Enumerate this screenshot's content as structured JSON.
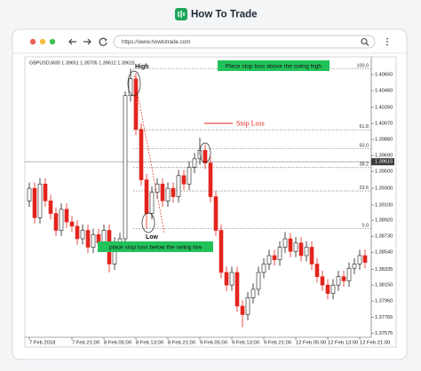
{
  "header": {
    "brand": "How To Trade"
  },
  "browser": {
    "url": "https://www.howtotrade.com"
  },
  "chart_data": {
    "type": "candlestick",
    "symbol_info": "GBPUSD,M30  1.39651 1.39705 1.39612 1.39615",
    "categories": [
      "7 Feb 2018",
      null,
      null,
      null,
      null,
      null,
      null,
      null,
      "7 Feb 21:00",
      null,
      null,
      null,
      null,
      null,
      "8 Feb 05:00",
      null,
      null,
      null,
      null,
      null,
      "8 Feb 13:00",
      null,
      null,
      null,
      null,
      null,
      "8 Feb 21:00",
      null,
      null,
      null,
      null,
      null,
      "9 Feb 05:00",
      null,
      null,
      null,
      null,
      null,
      "9 Feb 13:00",
      null,
      null,
      null,
      null,
      null,
      "9 Feb 21:00",
      null,
      null,
      null,
      null,
      null,
      "12 Feb 05:00",
      null,
      null,
      null,
      null,
      null,
      "12 Feb 13:00",
      null,
      null,
      null,
      null,
      null,
      "12 Feb 21:00",
      null
    ],
    "open": [
      1.3915,
      1.393,
      1.3895,
      1.3935,
      1.3915,
      1.39,
      1.388,
      1.3905,
      1.389,
      1.3885,
      1.387,
      1.388,
      1.386,
      1.3875,
      1.3865,
      1.388,
      1.384,
      1.3865,
      1.387,
      1.404,
      1.406,
      1.4,
      1.394,
      1.39,
      1.3925,
      1.3935,
      1.3915,
      1.393,
      1.392,
      1.3945,
      1.3935,
      1.3955,
      1.3965,
      1.3975,
      1.396,
      1.392,
      1.388,
      1.383,
      1.3815,
      1.383,
      1.379,
      1.378,
      1.38,
      1.381,
      1.383,
      1.384,
      1.385,
      1.3845,
      1.386,
      1.387,
      1.3855,
      1.3865,
      1.385,
      1.386,
      1.384,
      1.3825,
      1.3815,
      1.3805,
      1.3815,
      1.3825,
      1.382,
      1.3835,
      1.384,
      1.385
    ],
    "high": [
      1.3937,
      1.3937,
      1.3942,
      1.3942,
      1.3922,
      1.3907,
      1.3912,
      1.3912,
      1.3897,
      1.3892,
      1.3887,
      1.3887,
      1.3882,
      1.3882,
      1.3887,
      1.3887,
      1.3872,
      1.3877,
      1.4045,
      1.4072,
      1.4067,
      1.4007,
      1.3947,
      1.3932,
      1.3942,
      1.3942,
      1.3937,
      1.3937,
      1.3952,
      1.3952,
      1.3962,
      1.3972,
      1.399,
      1.3982,
      1.3967,
      1.3927,
      1.3887,
      1.3837,
      1.3837,
      1.3837,
      1.3797,
      1.3807,
      1.3817,
      1.3837,
      1.3847,
      1.3857,
      1.3857,
      1.3867,
      1.3878,
      1.3877,
      1.3872,
      1.3872,
      1.3867,
      1.3867,
      1.3847,
      1.3832,
      1.3822,
      1.3822,
      1.3832,
      1.3832,
      1.3842,
      1.3847,
      1.3857,
      1.3857
    ],
    "low": [
      1.3908,
      1.3888,
      1.3888,
      1.3908,
      1.3893,
      1.3873,
      1.3873,
      1.3883,
      1.3878,
      1.3863,
      1.3863,
      1.3853,
      1.3853,
      1.3858,
      1.3858,
      1.383,
      1.3833,
      1.3858,
      1.3863,
      1.4033,
      1.3993,
      1.3933,
      1.3882,
      1.3893,
      1.3918,
      1.3908,
      1.3908,
      1.3913,
      1.3913,
      1.3928,
      1.3928,
      1.3948,
      1.3958,
      1.3953,
      1.3913,
      1.3873,
      1.3823,
      1.3808,
      1.3808,
      1.3783,
      1.3765,
      1.3773,
      1.3793,
      1.3803,
      1.3823,
      1.3833,
      1.3838,
      1.3838,
      1.3853,
      1.3848,
      1.3848,
      1.3843,
      1.3843,
      1.3833,
      1.3818,
      1.3808,
      1.3798,
      1.3798,
      1.3808,
      1.3813,
      1.3813,
      1.3828,
      1.3833,
      1.3835
    ],
    "close": [
      1.393,
      1.3895,
      1.3935,
      1.3915,
      1.39,
      1.388,
      1.3905,
      1.389,
      1.3885,
      1.387,
      1.388,
      1.386,
      1.3875,
      1.3865,
      1.388,
      1.384,
      1.3865,
      1.387,
      1.404,
      1.406,
      1.4,
      1.394,
      1.39,
      1.3925,
      1.3935,
      1.3915,
      1.393,
      1.392,
      1.3945,
      1.3935,
      1.3955,
      1.3965,
      1.3975,
      1.396,
      1.392,
      1.388,
      1.383,
      1.3815,
      1.383,
      1.379,
      1.378,
      1.38,
      1.381,
      1.383,
      1.384,
      1.385,
      1.3845,
      1.386,
      1.387,
      1.3855,
      1.3865,
      1.385,
      1.386,
      1.384,
      1.3825,
      1.3815,
      1.3805,
      1.3815,
      1.3825,
      1.382,
      1.3835,
      1.384,
      1.385,
      1.3842
    ],
    "up_color": "#1b1b1b",
    "down_color": "#e3241c",
    "ylim": [
      1.3753,
      1.4084
    ],
    "yticks": [
      1.37575,
      1.37765,
      {
        "value": 1.3796,
        "label": "1.37960"
      },
      {
        "value": 1.3815,
        "label": "1.38150"
      },
      1.38335,
      {
        "value": 1.3854,
        "label": "1.38540"
      },
      {
        "value": 1.3873,
        "label": "1.38730"
      },
      {
        "value": 1.3892,
        "label": "1.38920"
      },
      {
        "value": 1.391,
        "label": "1.39100"
      },
      {
        "value": 1.393,
        "label": "1.39300"
      },
      {
        "value": 1.395,
        "label": "1.39500"
      },
      {
        "value": 1.3969,
        "label": "1.39690"
      },
      {
        "value": 1.3988,
        "label": "1.39880"
      },
      {
        "value": 1.4007,
        "label": "1.40070"
      },
      {
        "value": 1.4026,
        "label": "1.40260"
      },
      {
        "value": 1.4046,
        "label": "1.40460"
      },
      {
        "value": 1.4065,
        "label": "1.40650"
      }
    ],
    "current_price": 1.39615,
    "fib": {
      "high": 1.4072,
      "low": 1.3882,
      "levels": [
        {
          "value": 100,
          "label": "100.0"
        },
        61.8,
        {
          "value": 50,
          "label": "50.0"
        },
        38.2,
        23.6,
        {
          "value": 0,
          "label": "0.0"
        }
      ]
    },
    "annotations": {
      "high": "High",
      "low": "Low",
      "stop_loss": "Stop Loss",
      "above": "Place stop loss above the swing high",
      "below": "place stop loss below the swing low"
    }
  }
}
